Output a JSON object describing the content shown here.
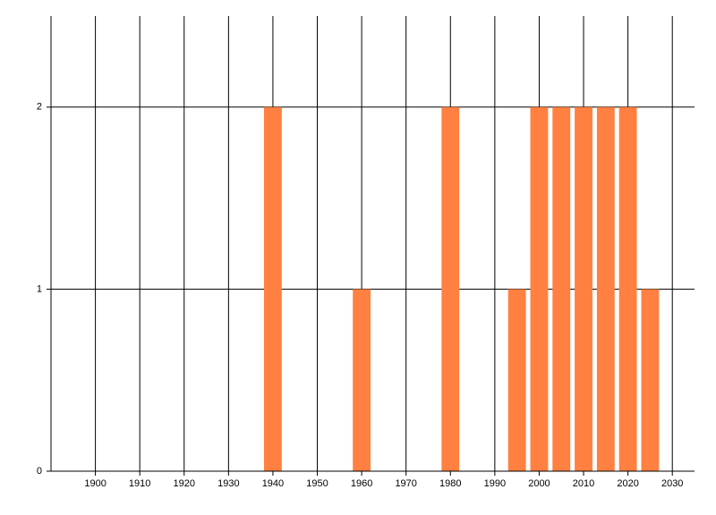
{
  "chart_data": {
    "type": "bar",
    "x": [
      1940,
      1960,
      1980,
      1995,
      2000,
      2005,
      2010,
      2015,
      2020,
      2025
    ],
    "values": [
      2,
      1,
      2,
      1,
      2,
      2,
      2,
      2,
      2,
      1
    ],
    "color": "#ff8040",
    "xlim": [
      1890,
      2035
    ],
    "xticks": [
      1900,
      1910,
      1920,
      1930,
      1940,
      1950,
      1960,
      1970,
      1980,
      1990,
      2000,
      2010,
      2020,
      2030
    ],
    "ylim": [
      0,
      2.5
    ],
    "yticks": [
      0,
      1,
      2
    ],
    "grid": true
  }
}
